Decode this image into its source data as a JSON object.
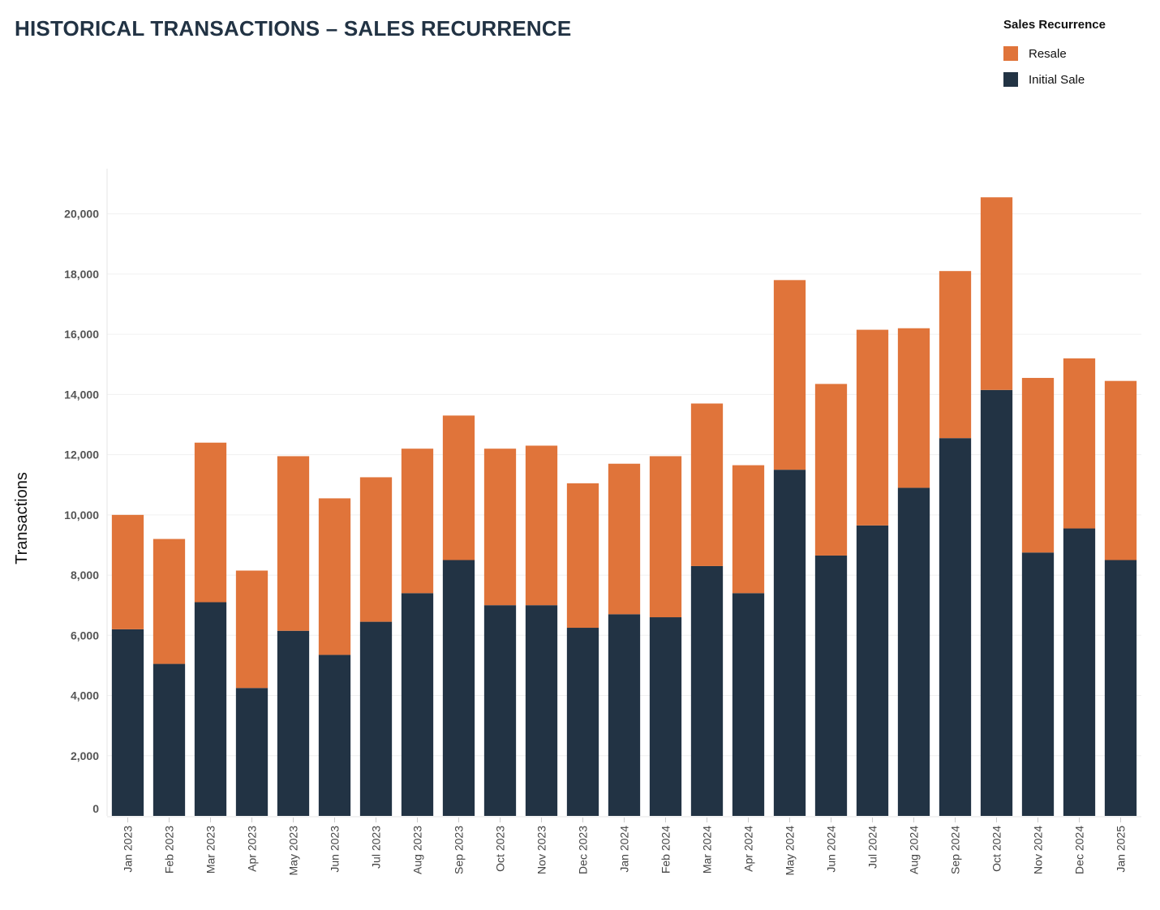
{
  "title": "HISTORICAL TRANSACTIONS – SALES RECURRENCE",
  "legend": {
    "title": "Sales Recurrence",
    "items": [
      {
        "label": "Resale",
        "color": "#E0743A"
      },
      {
        "label": "Initial Sale",
        "color": "#223344"
      }
    ]
  },
  "chart_data": {
    "type": "bar",
    "stacked": true,
    "title": "HISTORICAL TRANSACTIONS – SALES RECURRENCE",
    "xlabel": "",
    "ylabel": "Transactions",
    "ylim": [
      0,
      21500
    ],
    "yticks": [
      0,
      2000,
      4000,
      6000,
      8000,
      10000,
      12000,
      14000,
      16000,
      18000,
      20000
    ],
    "ytick_labels": [
      "0",
      "2,000",
      "4,000",
      "6,000",
      "8,000",
      "10,000",
      "12,000",
      "14,000",
      "16,000",
      "18,000",
      "20,000"
    ],
    "grid": true,
    "legend_position": "top-right",
    "categories": [
      "Jan 2023",
      "Feb 2023",
      "Mar 2023",
      "Apr 2023",
      "May 2023",
      "Jun 2023",
      "Jul 2023",
      "Aug 2023",
      "Sep 2023",
      "Oct 2023",
      "Nov 2023",
      "Dec 2023",
      "Jan 2024",
      "Feb 2024",
      "Mar 2024",
      "Apr 2024",
      "May 2024",
      "Jun 2024",
      "Jul 2024",
      "Aug 2024",
      "Sep 2024",
      "Oct 2024",
      "Nov 2024",
      "Dec 2024",
      "Jan 2025"
    ],
    "series": [
      {
        "name": "Initial Sale",
        "color": "#223344",
        "values": [
          6200,
          5050,
          7100,
          4250,
          6150,
          5350,
          6450,
          7400,
          8500,
          7000,
          7000,
          6250,
          6700,
          6600,
          8300,
          7400,
          11500,
          8650,
          9650,
          10900,
          12550,
          14150,
          8750,
          9550,
          8500
        ]
      },
      {
        "name": "Resale",
        "color": "#E0743A",
        "values": [
          3800,
          4150,
          5300,
          3900,
          5800,
          5200,
          4800,
          4800,
          4800,
          5200,
          5300,
          4800,
          5000,
          5350,
          5400,
          4250,
          6300,
          5700,
          6500,
          5300,
          5550,
          6400,
          5800,
          5650,
          5950
        ]
      }
    ]
  }
}
